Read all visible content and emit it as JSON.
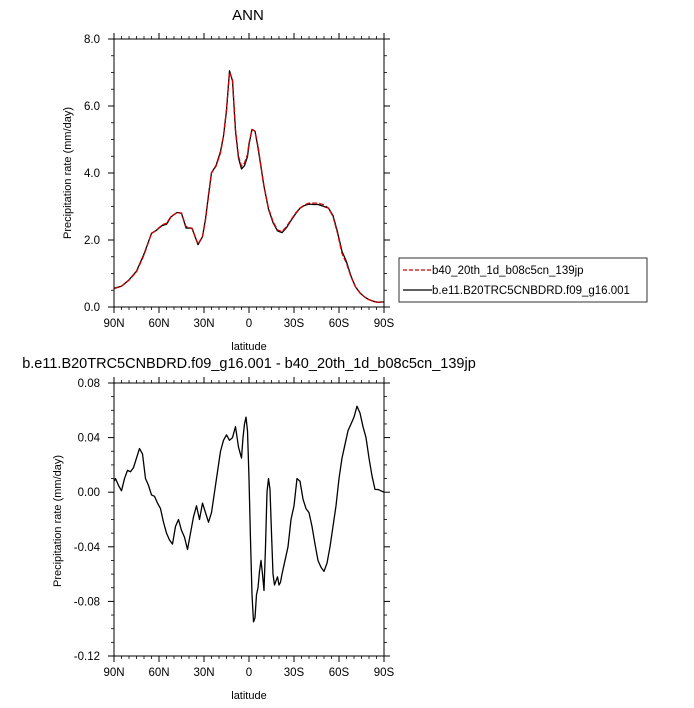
{
  "chart_data": [
    {
      "type": "line",
      "title": "ANN",
      "xlabel": "latitude",
      "ylabel": "Precipitation rate (mm/day)",
      "xlim": [
        90,
        -90
      ],
      "ylim": [
        0,
        8
      ],
      "x_ticks": [
        90,
        60,
        30,
        0,
        -30,
        -60,
        -90
      ],
      "x_tick_labels": [
        "90N",
        "60N",
        "30N",
        "0",
        "30S",
        "60S",
        "90S"
      ],
      "y_ticks": [
        0,
        2,
        4,
        6,
        8
      ],
      "y_tick_labels": [
        "0.0",
        "2.0",
        "4.0",
        "6.0",
        "8.0"
      ],
      "legend_position": "right",
      "x": [
        90,
        85,
        80,
        75,
        70,
        65,
        62,
        58,
        55,
        52,
        48,
        45,
        42,
        38,
        34,
        31,
        29,
        27,
        25,
        22,
        19,
        17,
        15,
        13,
        11,
        9,
        7,
        5,
        3,
        1,
        0,
        -2,
        -4,
        -6,
        -8,
        -10,
        -13,
        -16,
        -19,
        -22,
        -25,
        -28,
        -31,
        -34,
        -37,
        -40,
        -43,
        -46,
        -50,
        -53,
        -56,
        -59,
        -62,
        -65,
        -68,
        -71,
        -74,
        -77,
        -80,
        -83,
        -86,
        -88,
        -90
      ],
      "series": [
        {
          "name": "b40_20th_1d_b08c5cn_139jp",
          "color": "#cc0000",
          "dash": true,
          "values": [
            0.55,
            0.62,
            0.8,
            1.05,
            1.55,
            2.2,
            2.28,
            2.45,
            2.5,
            2.7,
            2.82,
            2.8,
            2.4,
            2.35,
            1.88,
            2.1,
            2.6,
            3.3,
            4.0,
            4.2,
            4.6,
            5.1,
            5.9,
            7.0,
            6.8,
            5.3,
            4.5,
            4.2,
            4.3,
            4.55,
            4.9,
            5.3,
            5.25,
            4.8,
            4.2,
            3.6,
            2.95,
            2.55,
            2.3,
            2.25,
            2.4,
            2.6,
            2.8,
            2.95,
            3.05,
            3.1,
            3.1,
            3.1,
            3.05,
            2.95,
            2.7,
            2.2,
            1.6,
            1.3,
            0.9,
            0.6,
            0.42,
            0.3,
            0.22,
            0.17,
            0.14,
            0.15,
            0.15
          ]
        },
        {
          "name": "b.e11.B20TRC5CNBDRD.f09_g16.001",
          "color": "#000000",
          "dash": false,
          "values": [
            0.56,
            0.62,
            0.81,
            1.07,
            1.58,
            2.2,
            2.28,
            2.43,
            2.47,
            2.69,
            2.82,
            2.8,
            2.36,
            2.35,
            1.86,
            2.1,
            2.63,
            3.34,
            4.01,
            4.22,
            4.64,
            5.1,
            5.86,
            7.05,
            6.75,
            5.25,
            4.45,
            4.12,
            4.22,
            4.49,
            4.85,
            5.3,
            5.25,
            4.75,
            4.18,
            3.6,
            2.92,
            2.52,
            2.27,
            2.22,
            2.37,
            2.58,
            2.78,
            2.95,
            3.03,
            3.07,
            3.06,
            3.06,
            3.0,
            2.95,
            2.73,
            2.24,
            1.66,
            1.35,
            0.92,
            0.6,
            0.42,
            0.3,
            0.22,
            0.17,
            0.14,
            0.15,
            0.15
          ]
        }
      ]
    },
    {
      "type": "line",
      "title": "b.e11.B20TRC5CNBDRD.f09_g16.001 - b40_20th_1d_b08c5cn_139jp",
      "xlabel": "latitude",
      "ylabel": "Precipitation rate (mm/day)",
      "xlim": [
        90,
        -90
      ],
      "ylim": [
        -0.12,
        0.08
      ],
      "x_ticks": [
        90,
        60,
        30,
        0,
        -30,
        -60,
        -90
      ],
      "x_tick_labels": [
        "90N",
        "60N",
        "30N",
        "0",
        "30S",
        "60S",
        "90S"
      ],
      "y_ticks": [
        -0.12,
        -0.08,
        -0.04,
        0,
        0.04,
        0.08
      ],
      "y_tick_labels": [
        "-0.12",
        "-0.08",
        "-0.04",
        "0.00",
        "0.04",
        "0.08"
      ],
      "series": [
        {
          "color": "#000000",
          "x": [
            90,
            89,
            87,
            85,
            83,
            81,
            79,
            77,
            75,
            73,
            71,
            69,
            67,
            65,
            63,
            61,
            59,
            57,
            55,
            53,
            51,
            49,
            47,
            45,
            43,
            41,
            39,
            37,
            35,
            33,
            31,
            29,
            27,
            25,
            23,
            21,
            19,
            17,
            15,
            13,
            11,
            9,
            7,
            5,
            4,
            3,
            2,
            1,
            0,
            -1,
            -2,
            -3,
            -4,
            -5,
            -6,
            -7,
            -8,
            -9,
            -10,
            -11,
            -12,
            -13,
            -14,
            -15,
            -16,
            -17,
            -18,
            -19,
            -20,
            -21,
            -22,
            -24,
            -26,
            -28,
            -30,
            -32,
            -34,
            -36,
            -38,
            -40,
            -42,
            -44,
            -46,
            -48,
            -50,
            -52,
            -54,
            -56,
            -58,
            -60,
            -62,
            -64,
            -66,
            -68,
            -70,
            -72,
            -74,
            -76,
            -78,
            -80,
            -82,
            -84,
            -86,
            -88,
            -90
          ],
          "values": [
            0.008,
            0.01,
            0.005,
            0.001,
            0.01,
            0.016,
            0.015,
            0.018,
            0.025,
            0.032,
            0.028,
            0.01,
            0.005,
            -0.002,
            -0.003,
            -0.008,
            -0.012,
            -0.022,
            -0.03,
            -0.035,
            -0.038,
            -0.025,
            -0.02,
            -0.028,
            -0.033,
            -0.042,
            -0.03,
            -0.018,
            -0.01,
            -0.02,
            -0.008,
            -0.015,
            -0.022,
            -0.015,
            0.0,
            0.015,
            0.03,
            0.038,
            0.042,
            0.038,
            0.04,
            0.048,
            0.033,
            0.025,
            0.04,
            0.05,
            0.055,
            0.045,
            0.01,
            -0.035,
            -0.075,
            -0.095,
            -0.092,
            -0.075,
            -0.07,
            -0.058,
            -0.05,
            -0.06,
            -0.072,
            -0.04,
            0.0,
            0.01,
            0.002,
            -0.03,
            -0.06,
            -0.068,
            -0.065,
            -0.062,
            -0.068,
            -0.066,
            -0.06,
            -0.05,
            -0.04,
            -0.02,
            -0.01,
            0.01,
            0.008,
            -0.005,
            -0.012,
            -0.015,
            -0.025,
            -0.038,
            -0.05,
            -0.055,
            -0.058,
            -0.052,
            -0.04,
            -0.025,
            -0.01,
            0.01,
            0.025,
            0.035,
            0.045,
            0.05,
            0.055,
            0.063,
            0.058,
            0.048,
            0.04,
            0.025,
            0.012,
            0.002,
            0.002,
            0.001,
            0.0
          ]
        }
      ]
    }
  ]
}
